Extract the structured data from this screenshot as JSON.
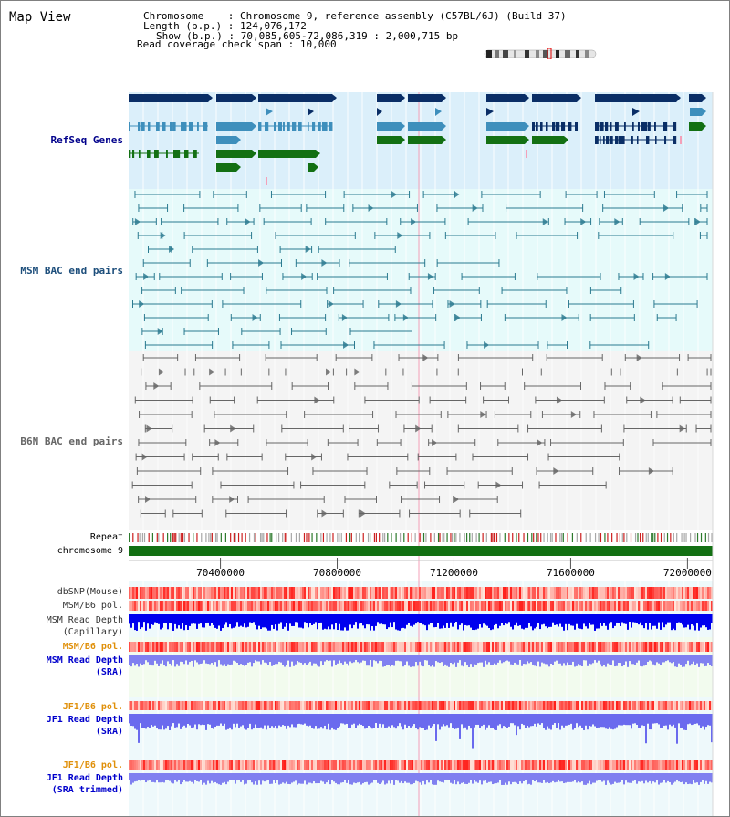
{
  "map_title": "Map View",
  "info": {
    "chromosome_key": "Chromosome",
    "chromosome_value": "Chromosome 9, reference assembly (C57BL/6J) (Build 37)",
    "length_key": "Length (b.p.)",
    "length_value": "124,076,172",
    "show_key": "Show (b.p.)",
    "show_value": "70,085,605-72,086,319 : 2,000,715 bp",
    "span_key": "Read coverage check span",
    "span_value": "10,000"
  },
  "tracks": {
    "refseq": "RefSeq Genes",
    "msm_bac": "MSM BAC end pairs",
    "b6n_bac": "B6N BAC end pairs",
    "repeat": "Repeat",
    "chromosome": "chromosome 9",
    "dbsnp": "dbSNP(Mouse)",
    "msm_b6_pol_1": "MSM/B6 pol.",
    "msm_depth_cap_1": "MSM Read Depth",
    "msm_depth_cap_2": "(Capillary)",
    "msm_b6_pol_2": "MSM/B6 pol.",
    "msm_depth_sra_1": "MSM Read Depth",
    "msm_depth_sra_2": "(SRA)",
    "jf1_pol_1": "JF1/B6 pol.",
    "jf1_depth_sra_1": "JF1 Read Depth",
    "jf1_depth_sra_2": "(SRA)",
    "jf1_pol_2": "JF1/B6 pol.",
    "jf1_depth_trim_1": "JF1 Read Depth",
    "jf1_depth_trim_2": "(SRA trimmed)"
  },
  "axis": {
    "ticks": [
      "70400000",
      "70800000",
      "71200000",
      "71600000",
      "72000000"
    ]
  },
  "colors": {
    "refseq_bg": "#dbeffa",
    "msm_bac_bg": "#e6fafa",
    "b6n_bac_bg": "#f4f4f4",
    "lower_bg": "#eef9fb",
    "refseq_dark": "#0a2e66",
    "refseq_mid": "#3e8fbc",
    "refseq_green": "#137013",
    "msm_bac_line": "#2b7a90",
    "b6n_bac_line": "#666666",
    "chromosome_bar": "#137013",
    "capillary_depth": "#0000ee",
    "sra_depth": "#8080f0",
    "jf1_depth": "#6a6aee",
    "label_navy": "#00008b",
    "label_teal": "#1d4e7b",
    "label_orange": "#e0900a",
    "label_blue": "#0000cc"
  },
  "icons": {
    "chromosome_ideogram": "chromosome-ideogram-icon"
  }
}
